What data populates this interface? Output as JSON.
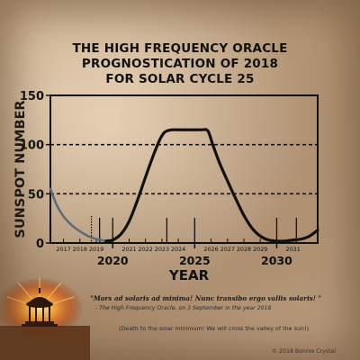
{
  "title_lines": [
    "THE HIGH FREQUENCY ORACLE",
    "PROGNOSTICATION OF 2018",
    "FOR SOLAR CYCLE 25"
  ],
  "quote": "\"Mors ad solaris ad minima! Nunc transibo ergo vallis solaris! \"",
  "attribution": "- The High Frequency Oracle, on 3 September in the year 2018",
  "translation": "(Death to the solar minimum! We will cross the valley of the sun!)",
  "copyright": "© 2018 Bonnie Crystal",
  "colors": {
    "forecast_line": "#111111",
    "history_line": "#5f6b78",
    "axis": "#111111"
  },
  "chart_data": {
    "type": "line",
    "title": "THE HIGH FREQUENCY ORACLE PROGNOSTICATION OF 2018 FOR SOLAR CYCLE 25",
    "xlabel": "YEAR",
    "ylabel": "SUNSPOT NUMBER",
    "xlim": [
      2016.2,
      2032.5
    ],
    "ylim": [
      0,
      150
    ],
    "y_ticks": [
      0,
      50,
      100,
      150
    ],
    "y_gridlines": [
      50,
      100
    ],
    "major_x_ticks": [
      2020,
      2025,
      2030
    ],
    "minor_x_tick_labels": [
      {
        "x": 2017,
        "label": "2017"
      },
      {
        "x": 2018,
        "label": "2018"
      },
      {
        "x": 2019,
        "label": "2019"
      },
      {
        "x": 2021,
        "label": "2021"
      },
      {
        "x": 2022,
        "label": "2022"
      },
      {
        "x": 2023,
        "label": "2023"
      },
      {
        "x": 2024,
        "label": "2024"
      },
      {
        "x": 2026,
        "label": "2026"
      },
      {
        "x": 2027,
        "label": "2027"
      },
      {
        "x": 2028,
        "label": "2028"
      },
      {
        "x": 2029,
        "label": "2029"
      },
      {
        "x": 2031,
        "label": "2031"
      }
    ],
    "tall_tick_marks": [
      2019.2,
      2020,
      2023.3,
      2025,
      2030,
      2031.2
    ],
    "dotted_marker_x": 2018.7,
    "series": [
      {
        "style": "history",
        "x": [
          2016.2,
          2016.6,
          2017.0,
          2017.5,
          2018.0,
          2018.5,
          2019.0,
          2019.6
        ],
        "y": [
          55,
          38,
          27,
          18,
          12,
          7,
          4,
          2
        ]
      },
      {
        "style": "forecast",
        "x": [
          2019.6,
          2020.0,
          2020.5,
          2021.0,
          2021.5,
          2022.0,
          2022.5,
          2022.9,
          2023.2,
          2023.6,
          2024.0,
          2024.5,
          2025.0,
          2025.4,
          2025.8,
          2026.1,
          2026.5,
          2027.0,
          2027.5,
          2028.0,
          2028.5,
          2029.0,
          2029.5,
          2030.0,
          2030.5,
          2031.0,
          2031.5,
          2032.0,
          2032.5
        ],
        "y": [
          2,
          3,
          9,
          22,
          43,
          67,
          90,
          106,
          113,
          115,
          115,
          115,
          115,
          115,
          114,
          100,
          82,
          63,
          45,
          28,
          15,
          7,
          3,
          2,
          2,
          3,
          4,
          7,
          13
        ]
      }
    ]
  }
}
